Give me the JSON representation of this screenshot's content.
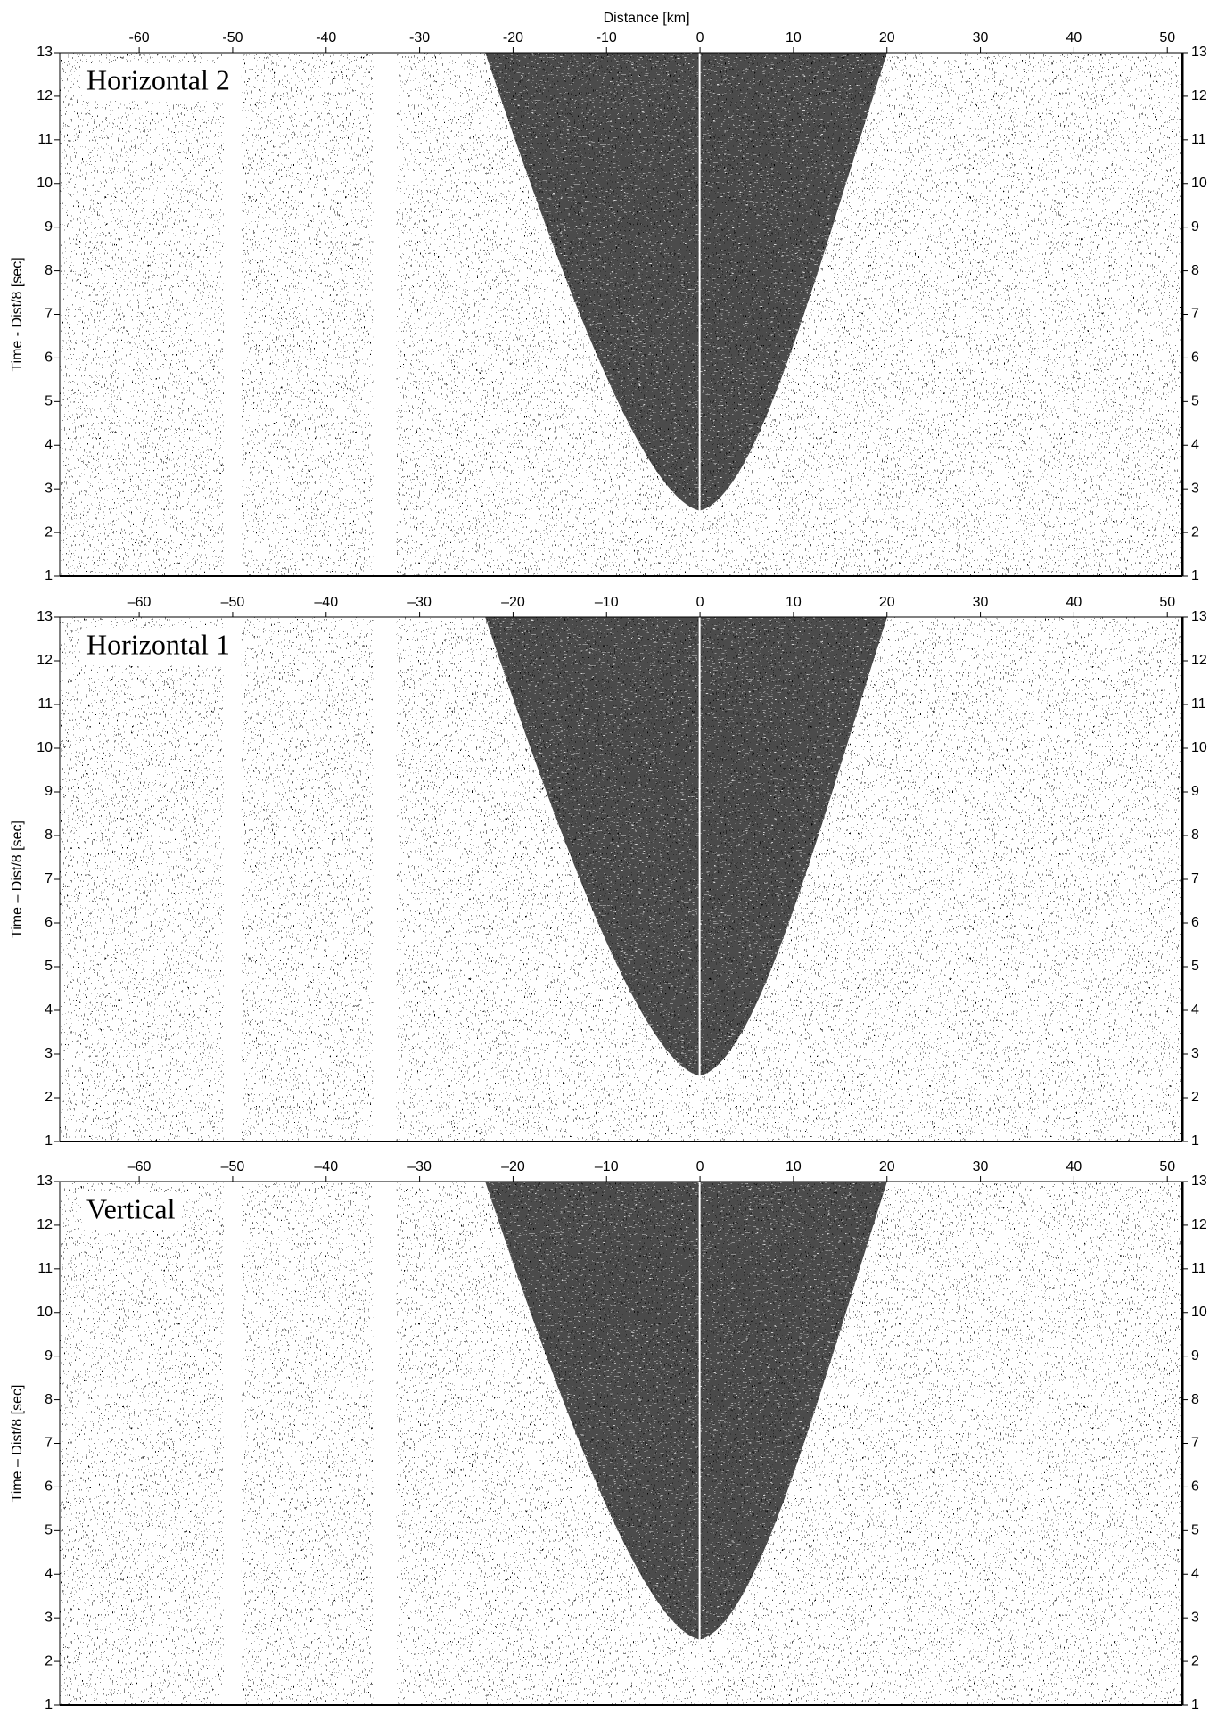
{
  "chart_data": [
    {
      "type": "seismic",
      "title": "Horizontal 2",
      "xlabel": "Distance [km]",
      "ylabel": "Time - Dist/8 [sec]",
      "xlim": [
        -68.5,
        51.6
      ],
      "ylim": [
        1,
        13
      ],
      "xticks": [
        -60,
        -50,
        -40,
        -30,
        -20,
        -10,
        0,
        10,
        20,
        30,
        40,
        50
      ],
      "yticks": [
        1,
        2,
        3,
        4,
        5,
        6,
        7,
        8,
        9,
        10,
        11,
        12,
        13
      ]
    },
    {
      "type": "seismic",
      "title": "Horizontal 1",
      "ylabel": "Time – Dist/8 [sec]",
      "xlim": [
        -68.5,
        51.6
      ],
      "ylim": [
        1,
        13
      ],
      "xticks": [
        {
          "value": -60,
          "label": "–60"
        },
        {
          "value": -50,
          "label": "–50"
        },
        {
          "value": -40,
          "label": "–40"
        },
        {
          "value": -30,
          "label": "–30"
        },
        {
          "value": -20,
          "label": "–20"
        },
        {
          "value": -10,
          "label": "–10"
        },
        0,
        10,
        20,
        30,
        40,
        50
      ],
      "yticks": [
        1,
        2,
        3,
        4,
        5,
        6,
        7,
        8,
        9,
        10,
        11,
        12,
        13
      ]
    },
    {
      "type": "seismic",
      "title": "Vertical",
      "ylabel": "Time – Dist/8 [sec]",
      "xlim": [
        -68.5,
        51.6
      ],
      "ylim": [
        1,
        13
      ],
      "xticks": [
        {
          "value": -60,
          "label": "–60"
        },
        {
          "value": -50,
          "label": "–50"
        },
        {
          "value": -40,
          "label": "–40"
        },
        {
          "value": -30,
          "label": "–30"
        },
        {
          "value": -20,
          "label": "–20"
        },
        {
          "value": -10,
          "label": "–10"
        },
        0,
        10,
        20,
        30,
        40,
        50
      ],
      "yticks": [
        1,
        2,
        3,
        4,
        5,
        6,
        7,
        8,
        9,
        10,
        11,
        12,
        13
      ]
    }
  ]
}
